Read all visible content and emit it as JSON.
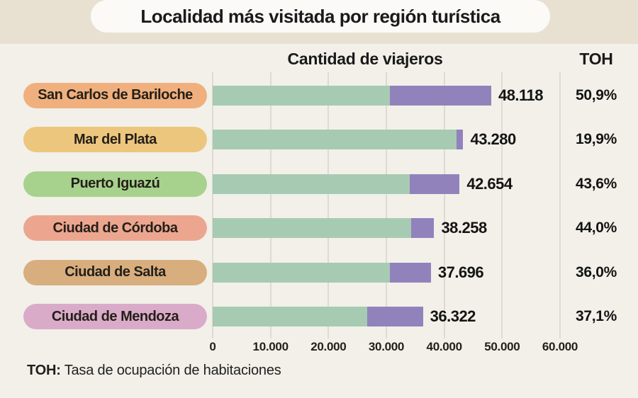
{
  "title": "Localidad más visitada por región turística",
  "headers": {
    "viajeros": "Cantidad de viajeros",
    "toh": "TOH"
  },
  "footer": {
    "term": "TOH:",
    "definition": " Tasa de ocupación de habitaciones"
  },
  "colors": {
    "top_band": "#e8e1d1",
    "background": "#f2f0e9",
    "title_pill": "#fbfaf7",
    "gridline": "#dddbd2",
    "green_segment": "#a6cbb2",
    "purple_segment": "#9282bc"
  },
  "chart_data": {
    "type": "bar",
    "orientation": "horizontal",
    "stacked": true,
    "title": "Localidad más visitada por región turística",
    "xlabel": "Cantidad de viajeros",
    "xlim": [
      0,
      60000
    ],
    "grid": true,
    "x_ticks": [
      {
        "value": 0,
        "label": "0"
      },
      {
        "value": 10000,
        "label": "10.000"
      },
      {
        "value": 20000,
        "label": "20.000"
      },
      {
        "value": 30000,
        "label": "30.000"
      },
      {
        "value": 40000,
        "label": "40.000"
      },
      {
        "value": 50000,
        "label": "50.000"
      },
      {
        "value": 60000,
        "label": "60.000"
      }
    ],
    "rows": [
      {
        "label": "San Carlos de Bariloche",
        "pill_color": "#f0b07e",
        "total": 48118,
        "total_label": "48.118",
        "segments": {
          "green": 30600,
          "purple": 17518
        },
        "toh_label": "50,9%"
      },
      {
        "label": "Mar del Plata",
        "pill_color": "#edc67d",
        "total": 43280,
        "total_label": "43.280",
        "segments": {
          "green": 42100,
          "purple": 1180
        },
        "toh_label": "19,9%"
      },
      {
        "label": "Puerto Iguazú",
        "pill_color": "#a7d28e",
        "total": 42654,
        "total_label": "42.654",
        "segments": {
          "green": 34000,
          "purple": 8654
        },
        "toh_label": "43,6%"
      },
      {
        "label": "Ciudad de Córdoba",
        "pill_color": "#eca690",
        "total": 38258,
        "total_label": "38.258",
        "segments": {
          "green": 34300,
          "purple": 3958
        },
        "toh_label": "44,0%"
      },
      {
        "label": "Ciudad de Salta",
        "pill_color": "#d8ae7e",
        "total": 37696,
        "total_label": "37.696",
        "segments": {
          "green": 30600,
          "purple": 7096
        },
        "toh_label": "36,0%"
      },
      {
        "label": "Ciudad de Mendoza",
        "pill_color": "#d9abc9",
        "total": 36322,
        "total_label": "36.322",
        "segments": {
          "green": 26700,
          "purple": 9622
        },
        "toh_label": "37,1%"
      }
    ]
  }
}
